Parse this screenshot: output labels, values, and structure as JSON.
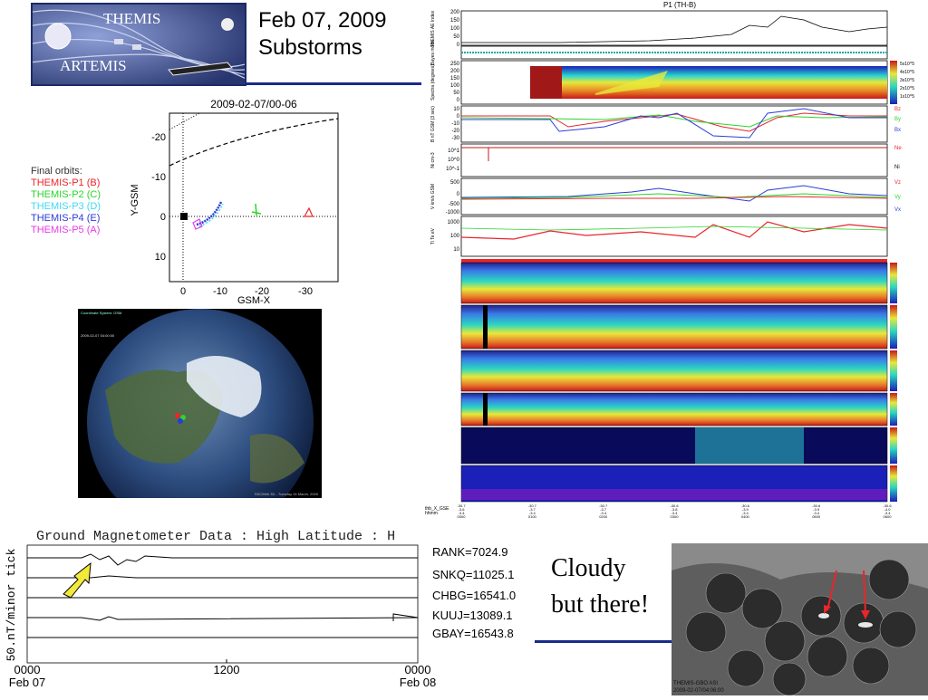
{
  "logo": {
    "line1": "THEMIS",
    "line2": "ARTEMIS"
  },
  "slide_title": {
    "line1": "Feb 07, 2009",
    "line2": "Substorms"
  },
  "orbit_plot": {
    "title": "2009-02-07/00-06",
    "xlabel": "GSM-X",
    "ylabel": "Y-GSM",
    "xticks": [
      "0",
      "-10",
      "-20",
      "-30"
    ],
    "yticks": [
      "-20",
      "-10",
      "0",
      "10"
    ],
    "legend_title": "Final orbits:",
    "legend": [
      {
        "label": "THEMIS-P1 (B)",
        "color": "#e8262b"
      },
      {
        "label": "THEMIS-P2 (C)",
        "color": "#2ad62a"
      },
      {
        "label": "THEMIS-P3 (D)",
        "color": "#3fd8f0"
      },
      {
        "label": "THEMIS-P4 (E)",
        "color": "#2b3bd6"
      },
      {
        "label": "THEMIS-P5 (A)",
        "color": "#e83ae8"
      }
    ]
  },
  "earth_view": {
    "header": "Coordinate System: GSM",
    "timestamp": "2009-02-07 04:00:00",
    "footer": "SSCWeb 3D - Tuesday 24 March, 2009"
  },
  "themis_panel": {
    "title": "P1 (TH-B)",
    "rows": [
      {
        "label": "THEMIS AE Index",
        "ticks": [
          "200",
          "150",
          "100",
          "50",
          "0"
        ]
      },
      {
        "label": "Bayes mode",
        "ticks": []
      },
      {
        "label": "Spectra (degrees)",
        "ticks": [
          "250",
          "200",
          "150",
          "100",
          "50",
          "0"
        ]
      },
      {
        "label": "B nT GSM (3 sec)",
        "ticks": [
          "10",
          "0",
          "-10",
          "-20",
          "-30"
        ]
      },
      {
        "label": "Ni cm-3",
        "ticks": [
          "10^1",
          "10^0",
          "10^-1"
        ]
      },
      {
        "label": "V km/s GSM",
        "ticks": [
          "500",
          "0",
          "-500",
          "-1000"
        ]
      },
      {
        "label": "Ti Te eV",
        "ticks": [
          "1000",
          "100",
          "10"
        ]
      }
    ],
    "right_labels": [
      "Bz",
      "By",
      "Bx",
      "Ne",
      "Ni",
      "Vz",
      "Vy",
      "Vx"
    ],
    "colorbar_labels": [
      "5x10^5",
      "4x10^5",
      "3x10^5",
      "2x10^5",
      "1x10^5"
    ],
    "time_axis": {
      "row_labels": [
        "thb_X_GSE",
        "thb_Y_GSE",
        "thb_Z_GSE",
        "hhmm",
        "2009 Feb 07"
      ],
      "ticks": [
        {
          "x": "-30.7",
          "y": "-3.6",
          "z": "-3.4",
          "t": "0000"
        },
        {
          "x": "-30.7",
          "y": "-3.7",
          "z": "-3.4",
          "t": "0100"
        },
        {
          "x": "-30.7",
          "y": "-3.7",
          "z": "-3.4",
          "t": "0200"
        },
        {
          "x": "-30.6",
          "y": "-3.8",
          "z": "-3.4",
          "t": "0300"
        },
        {
          "x": "-30.6",
          "y": "-3.9",
          "z": "-3.4",
          "t": "0400"
        },
        {
          "x": "-30.6",
          "y": "-3.9",
          "z": "-3.4",
          "t": "0500"
        },
        {
          "x": "-30.6",
          "y": "-4.0",
          "z": "-3.4",
          "t": "0600"
        }
      ]
    }
  },
  "magnetometer": {
    "title": "Ground Magnetometer Data : High Latitude : H",
    "ylabel": "50.nT/minor tick",
    "stations": [
      {
        "label": "RANK=7024.9"
      },
      {
        "label": "SNKQ=11025.1"
      },
      {
        "label": "CHBG=16541.0"
      },
      {
        "label": "KUUJ=13089.1"
      },
      {
        "label": "GBAY=16543.8"
      }
    ],
    "x_start": {
      "time": "0000",
      "date": "Feb 07"
    },
    "x_mid": {
      "time": "1200"
    },
    "x_end": {
      "time": "0000",
      "date": "Feb 08"
    }
  },
  "cloudy_text": {
    "line1": "Cloudy",
    "line2": "but there!"
  },
  "asi": {
    "line1": "THEMIS-GBO ASI",
    "line2": "2009-02-07/04:06:00"
  }
}
